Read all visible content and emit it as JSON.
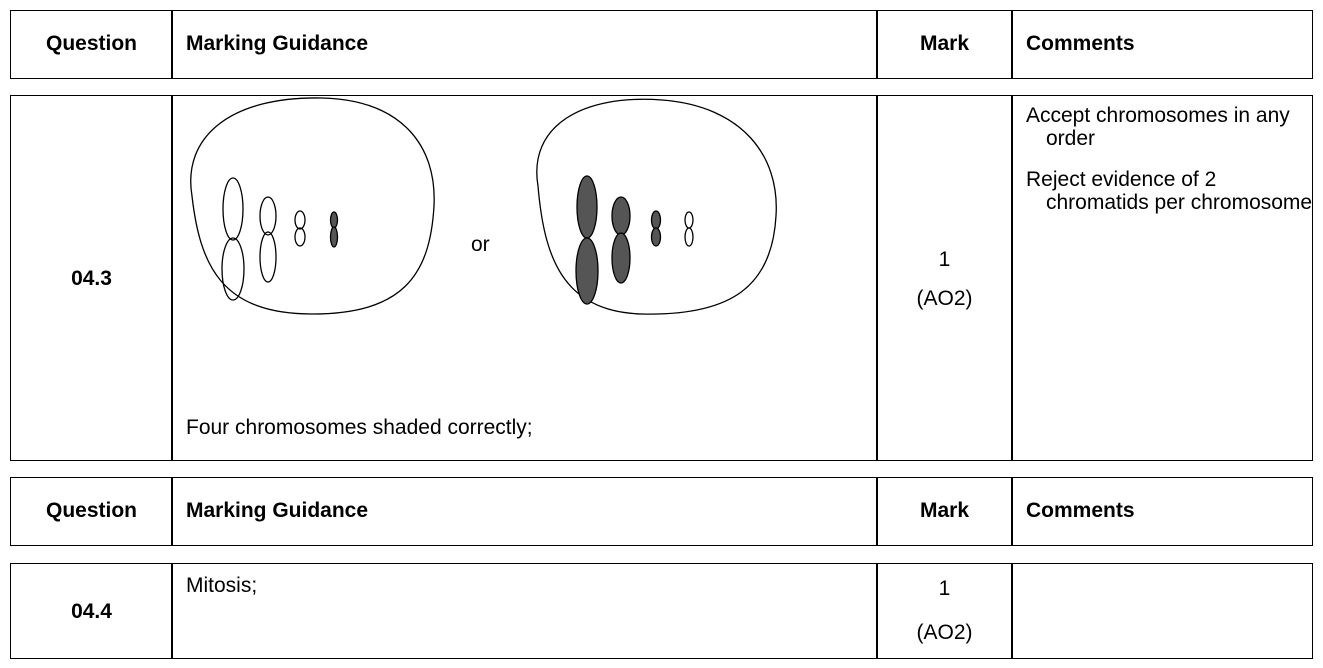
{
  "tables": [
    {
      "header": [
        "Question",
        "Marking Guidance",
        "Mark",
        "Comments"
      ],
      "rows": [
        {
          "question": "04.3",
          "guidance": {
            "separator": "or",
            "text": "Four chromosomes shaded correctly;"
          },
          "mark": [
            "1",
            "(AO2)"
          ],
          "comments": [
            "Accept chromosomes in any order",
            "Reject evidence of 2 chromatids per chromosome"
          ]
        }
      ]
    },
    {
      "header": [
        "Question",
        "Marking Guidance",
        "Mark",
        "Comments"
      ],
      "rows": [
        {
          "question": "04.4",
          "guidance": {
            "text": "Mitosis;"
          },
          "mark": [
            "1",
            "(AO2)"
          ]
        }
      ]
    }
  ]
}
